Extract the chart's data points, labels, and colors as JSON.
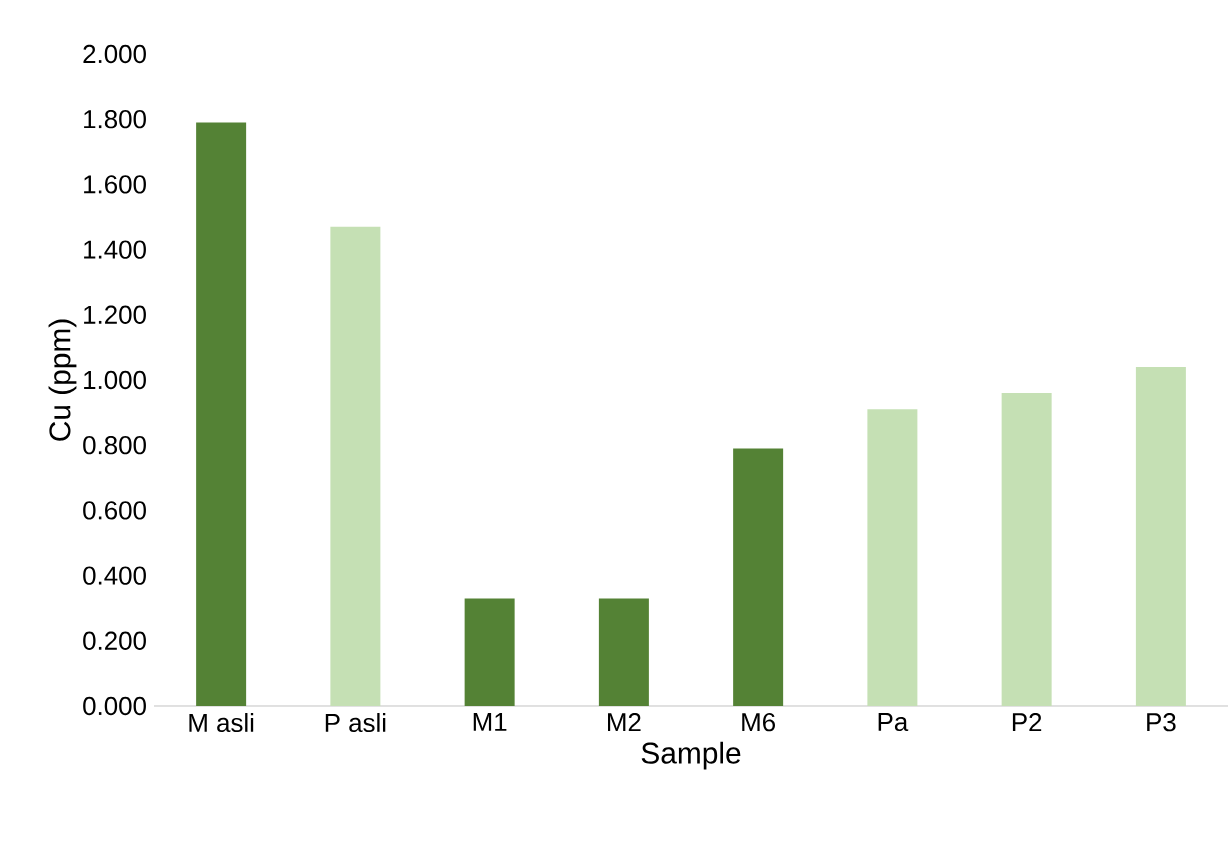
{
  "chart_data": {
    "type": "bar",
    "xlabel": "Sample",
    "ylabel": "Cu (ppm)",
    "categories": [
      "M asli",
      "P asli",
      "M1",
      "M2",
      "M6",
      "Pa",
      "P2",
      "P3"
    ],
    "values": [
      1.79,
      1.47,
      0.33,
      0.33,
      0.79,
      0.91,
      0.96,
      1.04
    ],
    "colors": [
      "#548235",
      "#c5e0b4",
      "#548235",
      "#548235",
      "#548235",
      "#c5e0b4",
      "#c5e0b4",
      "#c5e0b4"
    ],
    "ylim": [
      0,
      2
    ],
    "yticks": [
      {
        "value": 0,
        "label": "0.000"
      },
      {
        "value": 0.2,
        "label": "0.200"
      },
      {
        "value": 0.4,
        "label": "0.400"
      },
      {
        "value": 0.6,
        "label": "0.600"
      },
      {
        "value": 0.8,
        "label": "0.800"
      },
      {
        "value": 1.0,
        "label": "1.000"
      },
      {
        "value": 1.2,
        "label": "1.200"
      },
      {
        "value": 1.4,
        "label": "1.400"
      },
      {
        "value": 1.6,
        "label": "1.600"
      },
      {
        "value": 1.8,
        "label": "1.800"
      },
      {
        "value": 2.0,
        "label": "2.000"
      }
    ],
    "grid": false
  }
}
